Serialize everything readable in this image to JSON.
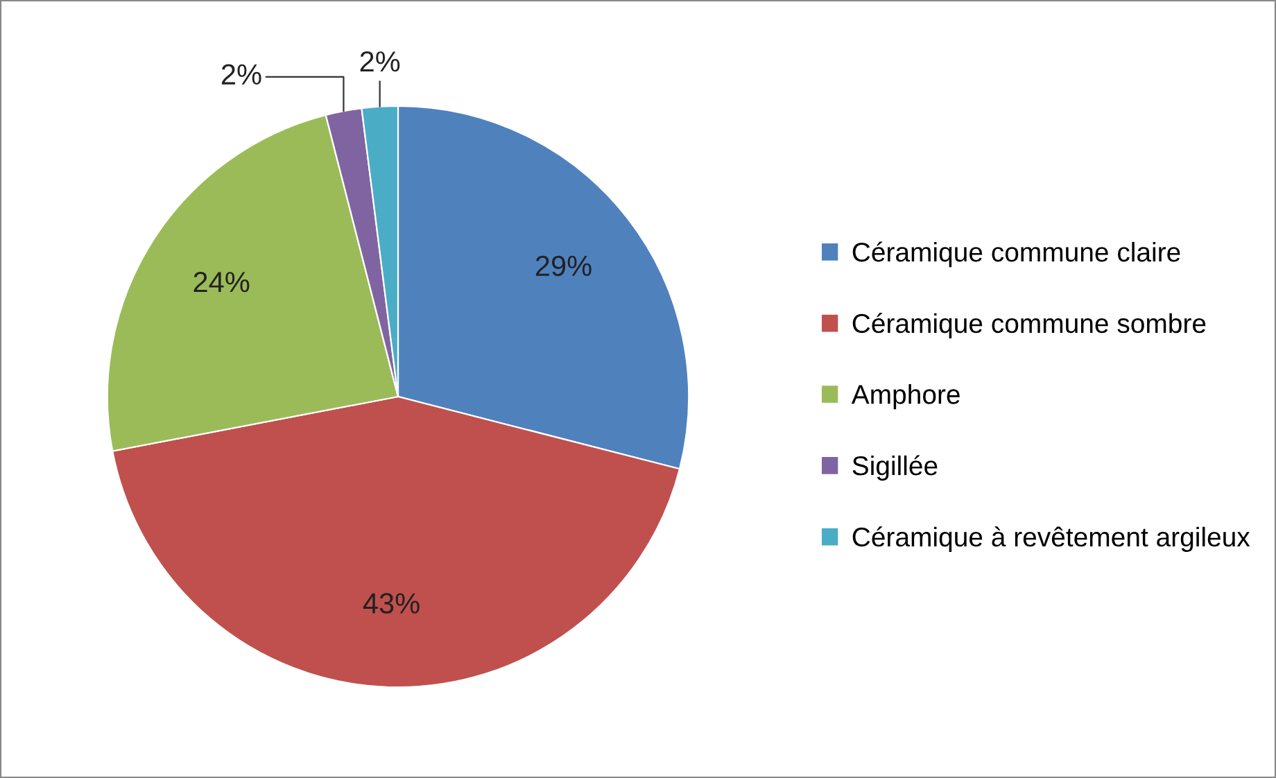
{
  "chart_data": {
    "type": "pie",
    "categories": [
      "Céramique commune claire",
      "Céramique commune sombre",
      "Amphore",
      "Sigillée",
      "Céramique à revêtement argileux"
    ],
    "values": [
      29,
      43,
      24,
      2,
      2
    ],
    "colors": [
      "#4f81bd",
      "#c0504d",
      "#9bbb59",
      "#8064a2",
      "#4bacc6"
    ],
    "value_labels": [
      "29%",
      "43%",
      "24%",
      "2%",
      "2%"
    ],
    "legend": "right"
  }
}
